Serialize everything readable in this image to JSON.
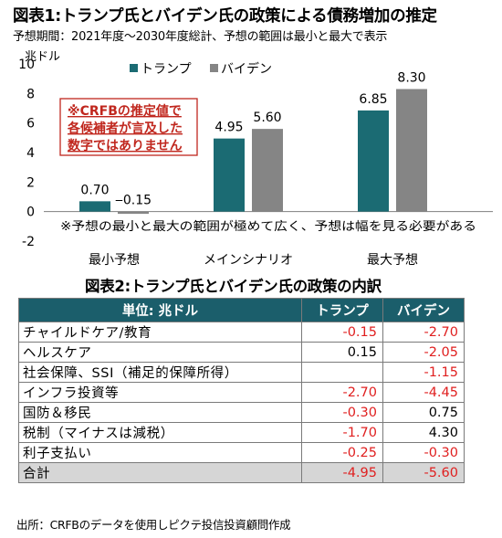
{
  "title1": "図表1:トランプ氏とバイデン氏の政策による債務増加の推定",
  "subtitle1": "予想期間：2021年度～2030年度総計、予想の範囲は最小と最大で表示",
  "chart_data": {
    "type": "bar",
    "ylabel": "兆ドル",
    "ylim": [
      -2,
      10
    ],
    "yticks": [
      -2,
      0,
      2,
      4,
      6,
      8,
      10
    ],
    "categories": [
      "最小予想",
      "メインシナリオ",
      "最大予想"
    ],
    "series": [
      {
        "name": "トランプ",
        "color": "#1b6b73",
        "values": [
          0.7,
          4.95,
          6.85
        ],
        "labels": [
          "0.70",
          "4.95",
          "6.85"
        ]
      },
      {
        "name": "バイデン",
        "color": "#858585",
        "values": [
          -0.15,
          5.6,
          8.3
        ],
        "labels": [
          "‒0.15",
          "5.60",
          "8.30"
        ]
      }
    ],
    "legend_position": "top",
    "callout": [
      "※CRFBの推定値で",
      "各候補者が言及した",
      "数字ではありません"
    ],
    "callout_color": "#c0271e",
    "note": "※予想の最小と最大の範囲が極めて広く、予想は幅を見る必要がある"
  },
  "title2": "図表2:トランプ氏とバイデン氏の政策の内訳",
  "table": {
    "header_color": "#1b5e6b",
    "negative_color": "#e02020",
    "headers": [
      "単位: 兆ドル",
      "トランプ",
      "バイデン"
    ],
    "rows": [
      {
        "label": "チャイルドケア/教育",
        "trump": "-0.15",
        "biden": "-2.70"
      },
      {
        "label": "ヘルスケア",
        "trump": "0.15",
        "biden": "-2.05"
      },
      {
        "label": "社会保障、SSI（補足的保障所得）",
        "trump": "",
        "biden": "-1.15"
      },
      {
        "label": "インフラ投資等",
        "trump": "-2.70",
        "biden": "-4.45"
      },
      {
        "label": "国防＆移民",
        "trump": "-0.30",
        "biden": "0.75"
      },
      {
        "label": "税制（マイナスは減税）",
        "trump": "-1.70",
        "biden": "4.30"
      },
      {
        "label": "利子支払い",
        "trump": "-0.25",
        "biden": "-0.30"
      },
      {
        "label": "合計",
        "trump": "-4.95",
        "biden": "-5.60",
        "total": true
      }
    ]
  },
  "source": "出所：CRFBのデータを使用しピクテ投信投資顧問作成"
}
